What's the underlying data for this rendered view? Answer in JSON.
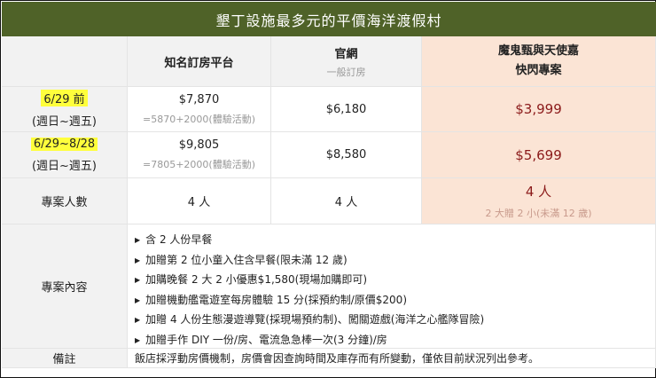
{
  "title": "墾丁設施最多元的平價海洋渡假村",
  "columns": {
    "booking_platform": "知名訂房平台",
    "official": "官網",
    "official_sub": "一般訂房",
    "special_line1": "魔鬼甄與天使嘉",
    "special_line2": "快閃專案"
  },
  "rows": [
    {
      "period": "6/29 前",
      "days": "(週日~週五)",
      "platform_price": "$7,870",
      "platform_note": "=5870+2000(體驗活動)",
      "official_price": "$6,180",
      "special_price": "$3,999"
    },
    {
      "period": "6/29~8/28",
      "days": "(週日~週五)",
      "platform_price": "$9,805",
      "platform_note": "=7805+2000(體驗活動)",
      "official_price": "$8,580",
      "special_price": "$5,699"
    }
  ],
  "count": {
    "label": "專案人數",
    "platform": "4 人",
    "official": "4 人",
    "special": "4 人",
    "special_note": "2 大贈 2 小(未滿 12 歲)"
  },
  "content": {
    "label": "專案內容",
    "items": [
      "含 2 人份早餐",
      "加贈第 2 位小童入住含早餐(限未滿 12 歲)",
      "加購晚餐 2 大 2 小優惠$1,580(現場加購即可)",
      "加贈機動艦電遊室每房體驗 15 分(採預約制/原價$200)",
      "加贈 4 人份生態漫遊導覽(採現場預約制)、闖關遊戲(海洋之心艦隊冒險)",
      "加贈手作 DIY 一份/房、電流急急棒一次(3 分鐘)/房"
    ]
  },
  "notes": {
    "label": "備註",
    "text": "飯店採浮動房價機制，房價會因查詢時間及庫存而有所變動，僅依目前狀況列出參考。"
  },
  "colors": {
    "header": "#4f6228",
    "special_bg": "#fbe4d5",
    "price_red": "#8b1a1a",
    "highlight": "#ffff3c"
  }
}
